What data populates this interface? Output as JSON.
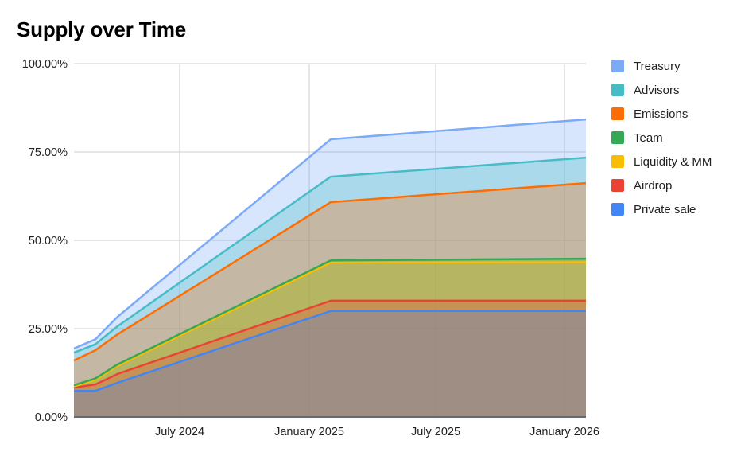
{
  "title": "Supply over Time",
  "chart_data": {
    "type": "area",
    "stacked": false,
    "title": "Supply over Time",
    "xlabel": "",
    "ylabel": "",
    "ylim": [
      0,
      100
    ],
    "y_ticks": [
      "0.00%",
      "25.00%",
      "50.00%",
      "75.00%",
      "100.00%"
    ],
    "x_ticks": [
      "July 2024",
      "January 2025",
      "July 2025",
      "January 2026"
    ],
    "x": [
      "Feb 2024",
      "Mar 2024",
      "Apr 2024",
      "Feb 2025",
      "Feb 2026"
    ],
    "legend_position": "right",
    "grid": true,
    "series": [
      {
        "name": "Treasury",
        "color": "#7baaf7",
        "values": [
          19.4,
          22.0,
          28.4,
          78.6,
          84.2
        ]
      },
      {
        "name": "Advisors",
        "color": "#46bdc6",
        "values": [
          18.2,
          20.6,
          25.7,
          68.0,
          73.4
        ]
      },
      {
        "name": "Emissions",
        "color": "#ff6d01",
        "values": [
          16.0,
          18.9,
          23.4,
          60.8,
          66.2
        ]
      },
      {
        "name": "Team",
        "color": "#34a853",
        "values": [
          9.0,
          10.9,
          14.9,
          44.3,
          44.8
        ]
      },
      {
        "name": "Liquidity & MM",
        "color": "#fbbc04",
        "values": [
          8.7,
          10.5,
          14.5,
          43.7,
          43.8
        ]
      },
      {
        "name": "Airdrop",
        "color": "#ea4335",
        "values": [
          8.3,
          9.2,
          12.2,
          32.9,
          32.9
        ]
      },
      {
        "name": "Private sale",
        "color": "#4285f4",
        "values": [
          7.4,
          7.4,
          9.7,
          30.0,
          30.0
        ]
      }
    ]
  },
  "legend": [
    {
      "label": "Treasury",
      "color": "#7baaf7"
    },
    {
      "label": "Advisors",
      "color": "#46bdc6"
    },
    {
      "label": "Emissions",
      "color": "#ff6d01"
    },
    {
      "label": "Team",
      "color": "#34a853"
    },
    {
      "label": "Liquidity & MM",
      "color": "#fbbc04"
    },
    {
      "label": "Airdrop",
      "color": "#ea4335"
    },
    {
      "label": "Private sale",
      "color": "#4285f4"
    }
  ]
}
